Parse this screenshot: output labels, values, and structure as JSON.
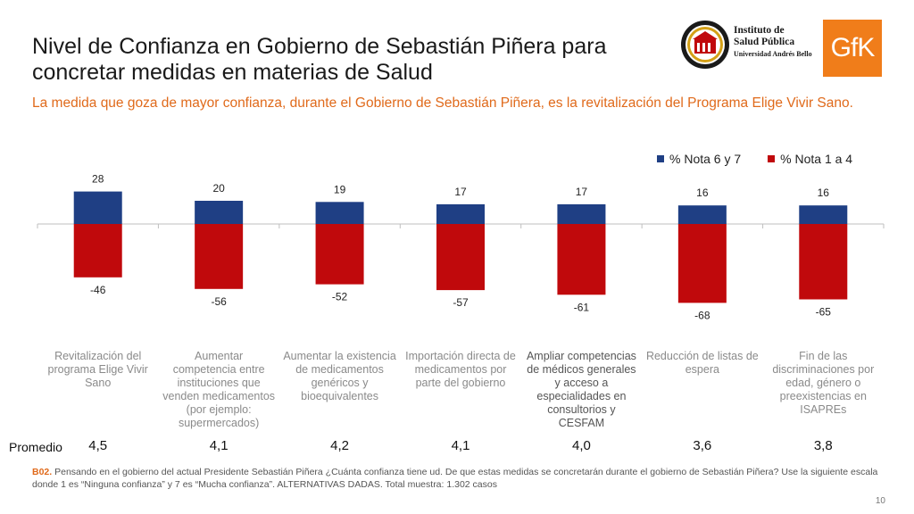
{
  "header": {
    "title": "Nivel de Confianza en Gobierno de Sebastián Piñera para concretar medidas en materias de Salud",
    "subtitle": "La medida que goza de mayor confianza, durante el Gobierno de Sebastián Piñera, es la revitalización del Programa Elige Vivir Sano."
  },
  "logos": {
    "isp_line1": "Instituto de",
    "isp_line2": "Salud Pública",
    "isp_line3": "Universidad Andrés Bello",
    "gfk": "GfK"
  },
  "colors": {
    "blue": "#1f3f84",
    "red": "#c0090c",
    "orange": "#e06a1b"
  },
  "chart_data": {
    "type": "bar",
    "categories": [
      "Revitalización del programa Elige Vivir Sano",
      "Aumentar competencia entre instituciones que venden medicamentos (por ejemplo: supermercados)",
      "Aumentar la existencia de medicamentos genéricos y bioequivalentes",
      "Importación directa de medicamentos por parte del gobierno",
      "Ampliar competencias de médicos generales y acceso a especialidades en consultorios y CESFAM",
      "Reducción de listas de espera",
      "Fin de las discriminaciones por edad, género o preexistencias en ISAPREs"
    ],
    "series": [
      {
        "name": "% Nota 6 y 7",
        "values": [
          28,
          20,
          19,
          17,
          17,
          16,
          16
        ],
        "color": "#1f3f84"
      },
      {
        "name": "% Nota 1 a 4",
        "values": [
          -46,
          -56,
          -52,
          -57,
          -61,
          -68,
          -65
        ],
        "color": "#c0090c"
      }
    ],
    "legend": "top-right",
    "grid": false
  },
  "promedio": {
    "label": "Promedio",
    "values": [
      "4,5",
      "4,1",
      "4,2",
      "4,1",
      "4,0",
      "3,6",
      "3,8"
    ]
  },
  "footnote": {
    "code": "B02.",
    "text": "Pensando en el gobierno del actual Presidente Sebastián Piñera ¿Cuánta confianza tiene ud. De que estas medidas se concretarán durante el gobierno de Sebastián Piñera? Use la siguiente escala donde 1 es “Ninguna confianza” y 7 es “Mucha confianza”. ALTERNATIVAS DADAS. Total muestra: 1.302 casos"
  },
  "page_number": "10"
}
